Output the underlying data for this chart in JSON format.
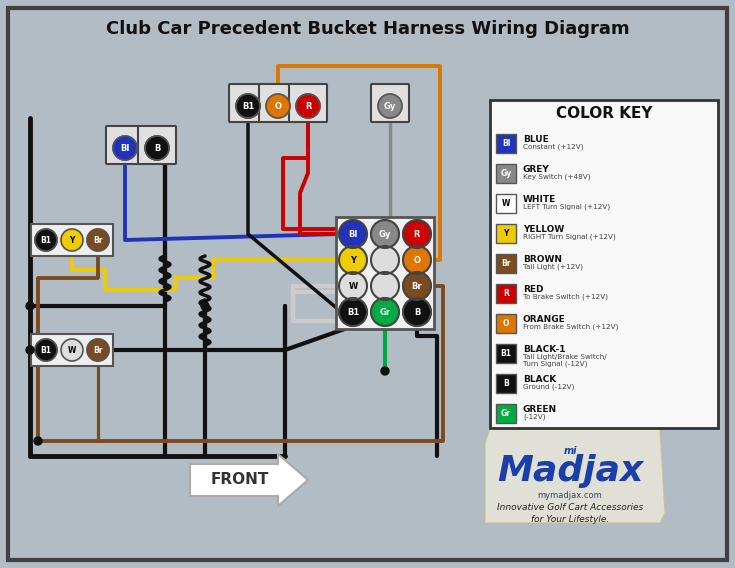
{
  "title": "Club Car Precedent Bucket Harness Wiring Diagram",
  "bg_color": "#b2bcc4",
  "border_color": "#404040",
  "color_key_title": "COLOR KEY",
  "color_key_entries": [
    {
      "code": "Bl",
      "name": "BLUE",
      "desc": "Constant (+12V)",
      "bg": "#2233bb",
      "fg": "#ffffff",
      "border": "#aaaaff"
    },
    {
      "code": "Gy",
      "name": "GREY",
      "desc": "Key Switch (+48V)",
      "bg": "#888888",
      "fg": "#ffffff",
      "border": "#cccccc"
    },
    {
      "code": "W",
      "name": "WHITE",
      "desc": "LEFT Turn Signal (+12V)",
      "bg": "#ffffff",
      "fg": "#000000",
      "border": "#aaaaaa"
    },
    {
      "code": "Y",
      "name": "YELLOW",
      "desc": "RIGHT Turn Signal (+12V)",
      "bg": "#eecc00",
      "fg": "#000000",
      "border": "#ccaa00"
    },
    {
      "code": "Br",
      "name": "BROWN",
      "desc": "Tail Light (+12V)",
      "bg": "#7b4a1e",
      "fg": "#ffffff",
      "border": "#5a3010"
    },
    {
      "code": "R",
      "name": "RED",
      "desc": "To Brake Switch (+12V)",
      "bg": "#cc0000",
      "fg": "#ffffff",
      "border": "#990000"
    },
    {
      "code": "O",
      "name": "ORANGE",
      "desc": "From Brake Switch (+12V)",
      "bg": "#dd7700",
      "fg": "#ffffff",
      "border": "#aa5500"
    },
    {
      "code": "B1",
      "name": "BLACK-1",
      "desc": "Tail Light/Brake Switch/\nTurn Signal (-12V)",
      "bg": "#111111",
      "fg": "#ffffff",
      "border": "#444444"
    },
    {
      "code": "B",
      "name": "BLACK",
      "desc": "Ground (-12V)",
      "bg": "#111111",
      "fg": "#ffffff",
      "border": "#444444"
    },
    {
      "code": "Gr",
      "name": "GREEN",
      "desc": "(-12V)",
      "bg": "#00aa44",
      "fg": "#ffffff",
      "border": "#007722"
    }
  ],
  "wire_blue": "#2233bb",
  "wire_grey": "#888888",
  "wire_white": "#cccccc",
  "wire_yellow": "#eecc00",
  "wire_brown": "#7b4a1e",
  "wire_red": "#cc0000",
  "wire_orange": "#dd7700",
  "wire_black": "#111111",
  "wire_green": "#00aa44"
}
